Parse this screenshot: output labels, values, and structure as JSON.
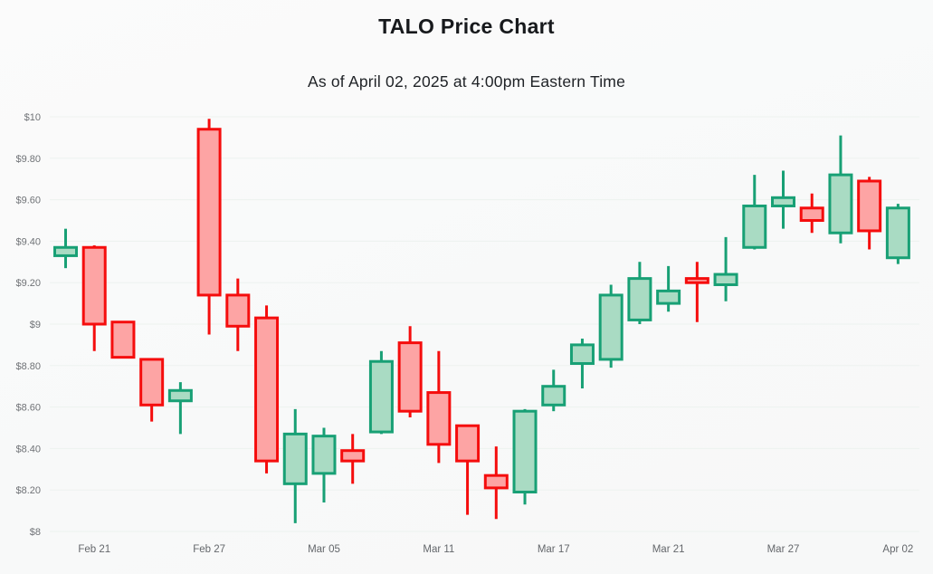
{
  "header": {
    "title": "TALO Price Chart",
    "subtitle": "As of April 02, 2025 at 4:00pm Eastern Time"
  },
  "chart_data": {
    "type": "candlestick",
    "title": "TALO Price Chart",
    "subtitle": "As of April 02, 2025 at 4:00pm Eastern Time",
    "ylabel": "",
    "xlabel": "",
    "grid": "horizontal-faint",
    "y_ticks": [
      "$10",
      "$9.80",
      "$9.60",
      "$9.40",
      "$9.20",
      "$9",
      "$8.80",
      "$8.60",
      "$8.40",
      "$8.20",
      "$8"
    ],
    "y_tick_values": [
      10,
      9.8,
      9.6,
      9.4,
      9.2,
      9,
      8.8,
      8.6,
      8.4,
      8.2,
      8
    ],
    "ylim": [
      8,
      10
    ],
    "x_tick_labels": [
      "Feb 21",
      "Feb 27",
      "Mar 05",
      "Mar 11",
      "Mar 17",
      "Mar 21",
      "Mar 27",
      "Apr 02"
    ],
    "x_tick_candle_indices": [
      1,
      5,
      9,
      13,
      17,
      21,
      25,
      29
    ],
    "candles": [
      {
        "open": 9.33,
        "high": 9.46,
        "low": 9.27,
        "close": 9.37
      },
      {
        "open": 9.37,
        "high": 9.38,
        "low": 8.87,
        "close": 9.0
      },
      {
        "open": 9.01,
        "high": 9.01,
        "low": 8.84,
        "close": 8.84
      },
      {
        "open": 8.83,
        "high": 8.83,
        "low": 8.53,
        "close": 8.61
      },
      {
        "open": 8.63,
        "high": 8.72,
        "low": 8.47,
        "close": 8.68
      },
      {
        "open": 9.94,
        "high": 9.99,
        "low": 8.95,
        "close": 9.14
      },
      {
        "open": 9.14,
        "high": 9.22,
        "low": 8.87,
        "close": 8.99
      },
      {
        "open": 9.03,
        "high": 9.09,
        "low": 8.28,
        "close": 8.34
      },
      {
        "open": 8.23,
        "high": 8.59,
        "low": 8.04,
        "close": 8.47
      },
      {
        "open": 8.28,
        "high": 8.5,
        "low": 8.14,
        "close": 8.46
      },
      {
        "open": 8.39,
        "high": 8.47,
        "low": 8.23,
        "close": 8.34
      },
      {
        "open": 8.48,
        "high": 8.87,
        "low": 8.47,
        "close": 8.82
      },
      {
        "open": 8.91,
        "high": 8.99,
        "low": 8.55,
        "close": 8.58
      },
      {
        "open": 8.67,
        "high": 8.87,
        "low": 8.33,
        "close": 8.42
      },
      {
        "open": 8.51,
        "high": 8.51,
        "low": 8.08,
        "close": 8.34
      },
      {
        "open": 8.27,
        "high": 8.41,
        "low": 8.06,
        "close": 8.21
      },
      {
        "open": 8.19,
        "high": 8.59,
        "low": 8.13,
        "close": 8.58
      },
      {
        "open": 8.61,
        "high": 8.78,
        "low": 8.58,
        "close": 8.7
      },
      {
        "open": 8.81,
        "high": 8.93,
        "low": 8.69,
        "close": 8.9
      },
      {
        "open": 8.83,
        "high": 9.19,
        "low": 8.79,
        "close": 9.14
      },
      {
        "open": 9.02,
        "high": 9.3,
        "low": 9.0,
        "close": 9.22
      },
      {
        "open": 9.1,
        "high": 9.28,
        "low": 9.06,
        "close": 9.16
      },
      {
        "open": 9.22,
        "high": 9.3,
        "low": 9.01,
        "close": 9.2
      },
      {
        "open": 9.19,
        "high": 9.42,
        "low": 9.11,
        "close": 9.24
      },
      {
        "open": 9.37,
        "high": 9.72,
        "low": 9.36,
        "close": 9.57
      },
      {
        "open": 9.57,
        "high": 9.74,
        "low": 9.46,
        "close": 9.61
      },
      {
        "open": 9.56,
        "high": 9.63,
        "low": 9.44,
        "close": 9.5
      },
      {
        "open": 9.44,
        "high": 9.91,
        "low": 9.39,
        "close": 9.72
      },
      {
        "open": 9.69,
        "high": 9.71,
        "low": 9.36,
        "close": 9.45
      },
      {
        "open": 9.32,
        "high": 9.58,
        "low": 9.29,
        "close": 9.56
      }
    ],
    "colors": {
      "up_fill": "#a9dbc3",
      "up_stroke": "#18a075",
      "down_fill": "#fda4a4",
      "down_stroke": "#f50d0d",
      "grid": "#edf2ef",
      "axis_label": "#6f7276",
      "title": "#17191c",
      "background": "#fafbfa"
    }
  }
}
